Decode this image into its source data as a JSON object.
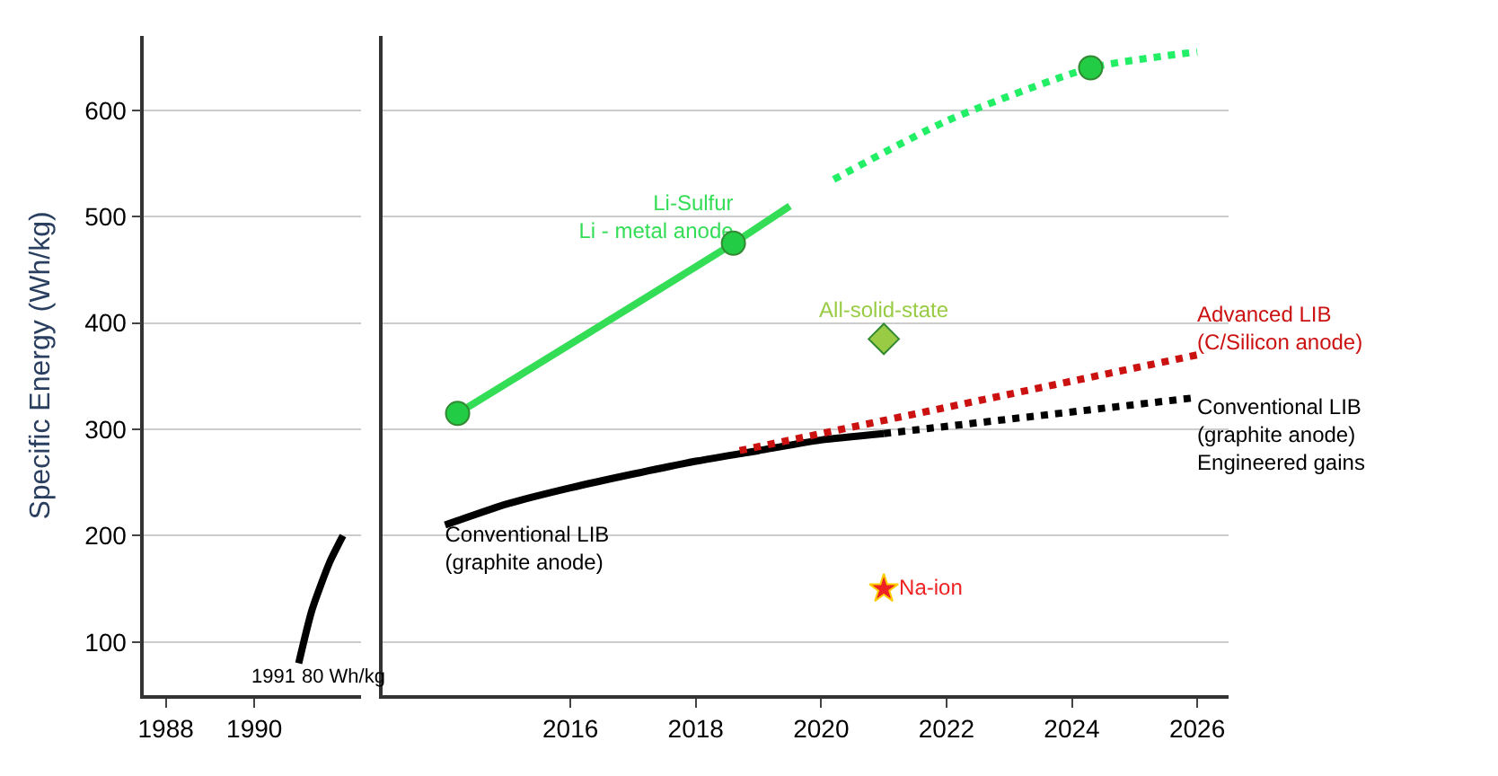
{
  "chart_data": [
    {
      "type": "line",
      "ylabel": "Specific Energy (Wh/kg)",
      "xlim": [
        1987.5,
        1992.4
      ],
      "xticks": [
        1988,
        1990
      ],
      "ylim": [
        50,
        670
      ],
      "yticks": [
        100,
        200,
        300,
        400,
        500,
        600
      ],
      "grid": "y",
      "legend": false,
      "series": [
        {
          "color": "#000000",
          "x": [
            1991,
            1991.3,
            1991.7,
            1992
          ],
          "values": [
            80,
            130,
            175,
            200
          ],
          "line_style": "solid",
          "marker": "none"
        }
      ],
      "annotations": [
        {
          "text": "1991",
          "x": 1991,
          "y": 80
        },
        {
          "text": "80 Wh/kg",
          "x": 1991,
          "y": 80
        }
      ]
    },
    {
      "type": "line",
      "xlim": [
        2013,
        2026.5
      ],
      "xticks": [
        2016,
        2018,
        2020,
        2022,
        2024,
        2026
      ],
      "ylim": [
        50,
        670
      ],
      "yticks": [
        100,
        200,
        300,
        400,
        500,
        600
      ],
      "grid": "y",
      "legend": false,
      "tick_labels": "x",
      "series": [
        {
          "name": "Conventional LIB\n(graphite anode)",
          "color": "#000000",
          "x": [
            2014,
            2015,
            2016,
            2017,
            2018,
            2019,
            2020,
            2021
          ],
          "values": [
            210,
            230,
            245,
            258,
            270,
            280,
            290,
            296
          ],
          "line_style": "solid",
          "marker": "none"
        },
        {
          "name": "Conventional LIB\n(graphite anode)\nEngineered gains",
          "color": "#000000",
          "x": [
            2021,
            2026
          ],
          "values": [
            296,
            330
          ],
          "line_style": "dotted",
          "marker": "none"
        },
        {
          "name": "Advanced LIB\n(C/Silicon anode)",
          "color": "#cc1111",
          "x": [
            2018.7,
            2026
          ],
          "values": [
            280,
            370
          ],
          "line_style": "dotted",
          "marker": "none"
        },
        {
          "name": "Li-Sulfur\nLi - metal anode",
          "color": "#33dd55",
          "x": [
            2014.2,
            2018.6,
            2019.5
          ],
          "values": [
            315,
            475,
            510
          ],
          "line_style": "solid",
          "marker": "none"
        },
        {
          "color": "#22ee66",
          "x": [
            2020.2,
            2022,
            2024.3,
            2026
          ],
          "values": [
            535,
            590,
            640,
            655
          ],
          "line_style": "dotted",
          "marker": "none"
        },
        {
          "type": "scatter",
          "color": "#22cc44",
          "x": [
            2014.2,
            2018.6,
            2024.3
          ],
          "values": [
            315,
            475,
            640
          ],
          "marker": "circle"
        },
        {
          "type": "scatter",
          "name": "All-solid-state",
          "color": "#99cc44",
          "x": [
            2021
          ],
          "values": [
            385
          ],
          "marker": "diamond"
        },
        {
          "type": "scatter",
          "name": "Na-ion",
          "color": "#ee2222",
          "x": [
            2021
          ],
          "values": [
            150
          ],
          "marker": "star"
        }
      ]
    }
  ]
}
